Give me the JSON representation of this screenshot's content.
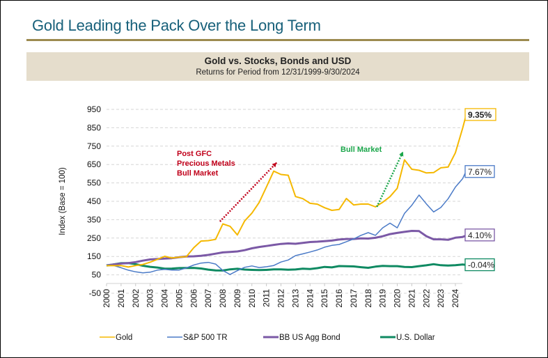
{
  "page": {
    "title": "Gold Leading the Pack Over the Long Term",
    "colors": {
      "title": "#17607a",
      "rule": "#9c8a4f",
      "banner": "#e5ddcc"
    }
  },
  "chart_data": {
    "type": "line",
    "title": "Gold vs. Stocks, Bonds and USD",
    "subtitle": "Returns for Period from 12/31/1999-9/30/2024",
    "xlabel": "",
    "ylabel": "Index (Base = 100)",
    "ylim": [
      -50,
      950
    ],
    "yticks": [
      "950",
      "850",
      "750",
      "650",
      "550",
      "450",
      "350",
      "250",
      "150",
      "50",
      "-50"
    ],
    "xticks": [
      "2000",
      "2001",
      "2002",
      "2003",
      "2004",
      "2005",
      "2006",
      "2007",
      "2008",
      "2009",
      "2010",
      "2011",
      "2012",
      "2013",
      "2014",
      "2015",
      "2016",
      "2017",
      "2018",
      "2019",
      "2020",
      "2021",
      "2022",
      "2023",
      "2024"
    ],
    "grid": true,
    "legend_position": "bottom",
    "x": [
      2000,
      2000.5,
      2001,
      2001.5,
      2002,
      2002.5,
      2003,
      2003.5,
      2004,
      2004.5,
      2005,
      2005.5,
      2006,
      2006.5,
      2007,
      2007.5,
      2008,
      2008.5,
      2009,
      2009.5,
      2010,
      2010.5,
      2011,
      2011.5,
      2012,
      2012.5,
      2013,
      2013.5,
      2014,
      2014.5,
      2015,
      2015.5,
      2016,
      2016.5,
      2017,
      2017.5,
      2018,
      2018.5,
      2019,
      2019.5,
      2020,
      2020.5,
      2021,
      2021.5,
      2022,
      2022.5,
      2023,
      2023.5,
      2024,
      2024.5,
      2024.75
    ],
    "series": [
      {
        "name": "Gold",
        "color": "#f5b800",
        "end_label": "9.35%",
        "values": [
          100,
          95,
          95,
          92,
          105,
          112,
          120,
          130,
          145,
          140,
          150,
          155,
          200,
          230,
          230,
          240,
          330,
          320,
          270,
          340,
          380,
          440,
          530,
          620,
          600,
          590,
          470,
          460,
          440,
          440,
          420,
          400,
          400,
          460,
          430,
          440,
          440,
          420,
          440,
          470,
          520,
          680,
          630,
          620,
          600,
          600,
          630,
          640,
          720,
          850,
          920
        ]
      },
      {
        "name": "S&P 500 TR",
        "color": "#4a7ac7",
        "end_label": "7.67%",
        "values": [
          100,
          95,
          88,
          80,
          72,
          62,
          60,
          70,
          78,
          80,
          82,
          90,
          100,
          108,
          115,
          112,
          80,
          55,
          70,
          85,
          95,
          92,
          100,
          105,
          118,
          125,
          150,
          165,
          180,
          190,
          200,
          205,
          210,
          230,
          250,
          270,
          280,
          260,
          300,
          330,
          310,
          390,
          430,
          480,
          430,
          390,
          420,
          470,
          530,
          570,
          610
        ]
      },
      {
        "name": "BB US Agg Bond",
        "color": "#7b59a6",
        "end_label": "4.10%",
        "values": [
          100,
          105,
          112,
          116,
          120,
          126,
          132,
          136,
          140,
          142,
          145,
          148,
          150,
          155,
          160,
          165,
          170,
          173,
          178,
          186,
          195,
          200,
          205,
          213,
          220,
          222,
          218,
          222,
          228,
          232,
          235,
          236,
          240,
          244,
          246,
          250,
          248,
          250,
          258,
          272,
          280,
          285,
          288,
          286,
          260,
          245,
          245,
          240,
          250,
          255,
          265
        ]
      },
      {
        "name": "U.S. Dollar",
        "color": "#0f8a62",
        "end_label": "-0.04%",
        "values": [
          100,
          105,
          112,
          115,
          110,
          100,
          92,
          88,
          84,
          86,
          88,
          86,
          86,
          84,
          80,
          76,
          73,
          78,
          82,
          80,
          79,
          76,
          75,
          78,
          80,
          80,
          80,
          82,
          80,
          86,
          95,
          92,
          97,
          95,
          95,
          93,
          90,
          95,
          97,
          96,
          98,
          95,
          93,
          96,
          100,
          108,
          104,
          102,
          102,
          104,
          103
        ]
      }
    ],
    "annotations": [
      {
        "text": [
          "Post GFC",
          "Precious Metals",
          "Bull Market"
        ],
        "color": "#c0001a",
        "arrow_from": [
          2007.8,
          340
        ],
        "arrow_to": [
          2011.7,
          660
        ]
      },
      {
        "text": [
          "Bull Market"
        ],
        "color": "#1aa64a",
        "arrow_from": [
          2018.6,
          420
        ],
        "arrow_to": [
          2020.4,
          720
        ]
      }
    ]
  }
}
